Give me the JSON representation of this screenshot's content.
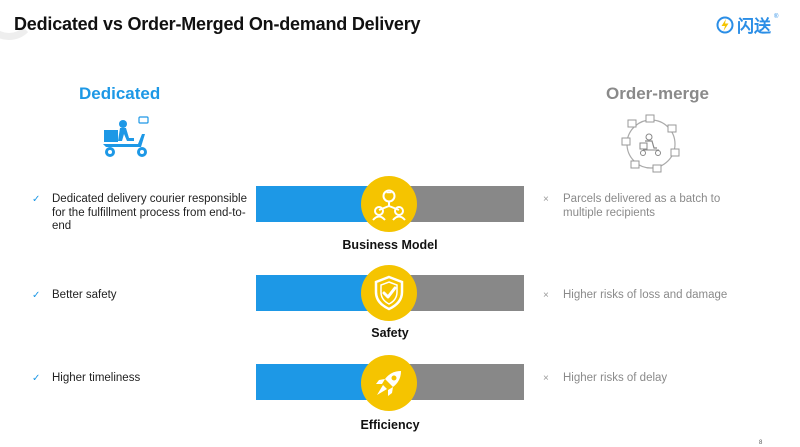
{
  "title": "Dedicated vs Order-Merged On-demand Delivery",
  "logo": {
    "text": "闪送",
    "reg": "®"
  },
  "left": {
    "heading": "Dedicated",
    "icon": "scooter-courier-icon",
    "items": [
      {
        "mark": "✓",
        "text": "Dedicated delivery courier responsible for the fulfillment process from end-to-end"
      },
      {
        "mark": "✓",
        "text": "Better safety"
      },
      {
        "mark": "✓",
        "text": "Higher timeliness"
      }
    ]
  },
  "right": {
    "heading": "Order-merge",
    "icon": "merged-parcels-icon",
    "items": [
      {
        "mark": "×",
        "text": "Parcels delivered as a batch to multiple recipients"
      },
      {
        "mark": "×",
        "text": "Higher risks of loss and damage"
      },
      {
        "mark": "×",
        "text": "Higher risks of delay"
      }
    ]
  },
  "comparisons": [
    {
      "label": "Business Model",
      "icon": "people-network-icon"
    },
    {
      "label": "Safety",
      "icon": "shield-check-icon"
    },
    {
      "label": "Efficiency",
      "icon": "rocket-icon"
    }
  ],
  "colors": {
    "dedicated": "#1d98e6",
    "merge": "#888888",
    "badge": "#f5c400"
  },
  "page_number": "8"
}
